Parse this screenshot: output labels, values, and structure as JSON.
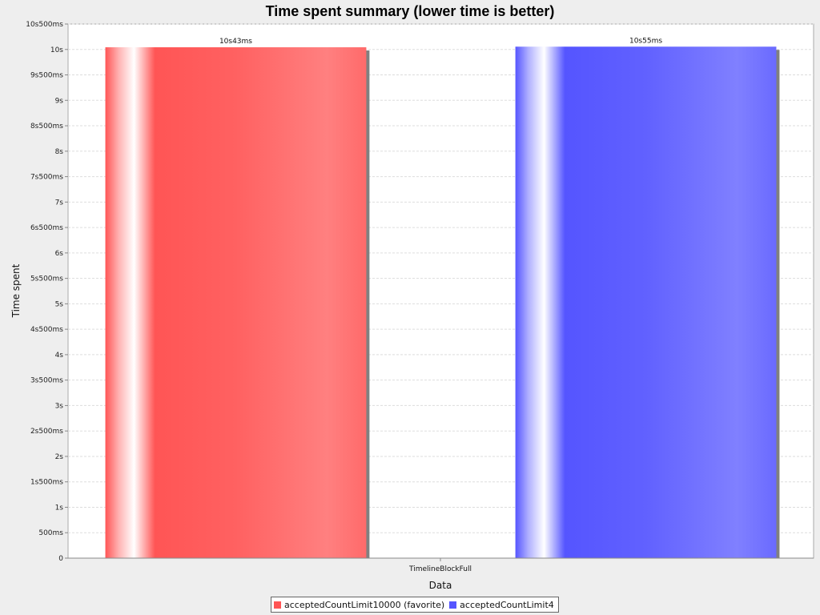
{
  "chart_data": {
    "type": "bar",
    "title": "Time spent summary (lower time is better)",
    "xlabel": "Data",
    "ylabel": "Time spent",
    "categories": [
      "TimelineBlockFull"
    ],
    "ylim": [
      0,
      10500
    ],
    "grid": true,
    "y_ticks": [
      {
        "value": 0,
        "label": "0"
      },
      {
        "value": 500,
        "label": "500ms"
      },
      {
        "value": 1000,
        "label": "1s"
      },
      {
        "value": 1500,
        "label": "1s500ms"
      },
      {
        "value": 2000,
        "label": "2s"
      },
      {
        "value": 2500,
        "label": "2s500ms"
      },
      {
        "value": 3000,
        "label": "3s"
      },
      {
        "value": 3500,
        "label": "3s500ms"
      },
      {
        "value": 4000,
        "label": "4s"
      },
      {
        "value": 4500,
        "label": "4s500ms"
      },
      {
        "value": 5000,
        "label": "5s"
      },
      {
        "value": 5500,
        "label": "5s500ms"
      },
      {
        "value": 6000,
        "label": "6s"
      },
      {
        "value": 6500,
        "label": "6s500ms"
      },
      {
        "value": 7000,
        "label": "7s"
      },
      {
        "value": 7500,
        "label": "7s500ms"
      },
      {
        "value": 8000,
        "label": "8s"
      },
      {
        "value": 8500,
        "label": "8s500ms"
      },
      {
        "value": 9000,
        "label": "9s"
      },
      {
        "value": 9500,
        "label": "9s500ms"
      },
      {
        "value": 10000,
        "label": "10s"
      },
      {
        "value": 10500,
        "label": "10s500ms"
      }
    ],
    "series": [
      {
        "name": "acceptedCountLimit10000 (favorite)",
        "values": [
          10043
        ],
        "value_labels": [
          "10s43ms"
        ],
        "color": "#ff5555"
      },
      {
        "name": "acceptedCountLimit4",
        "values": [
          10055
        ],
        "value_labels": [
          "10s55ms"
        ],
        "color": "#5555ff"
      }
    ],
    "legend_position": "bottom"
  }
}
